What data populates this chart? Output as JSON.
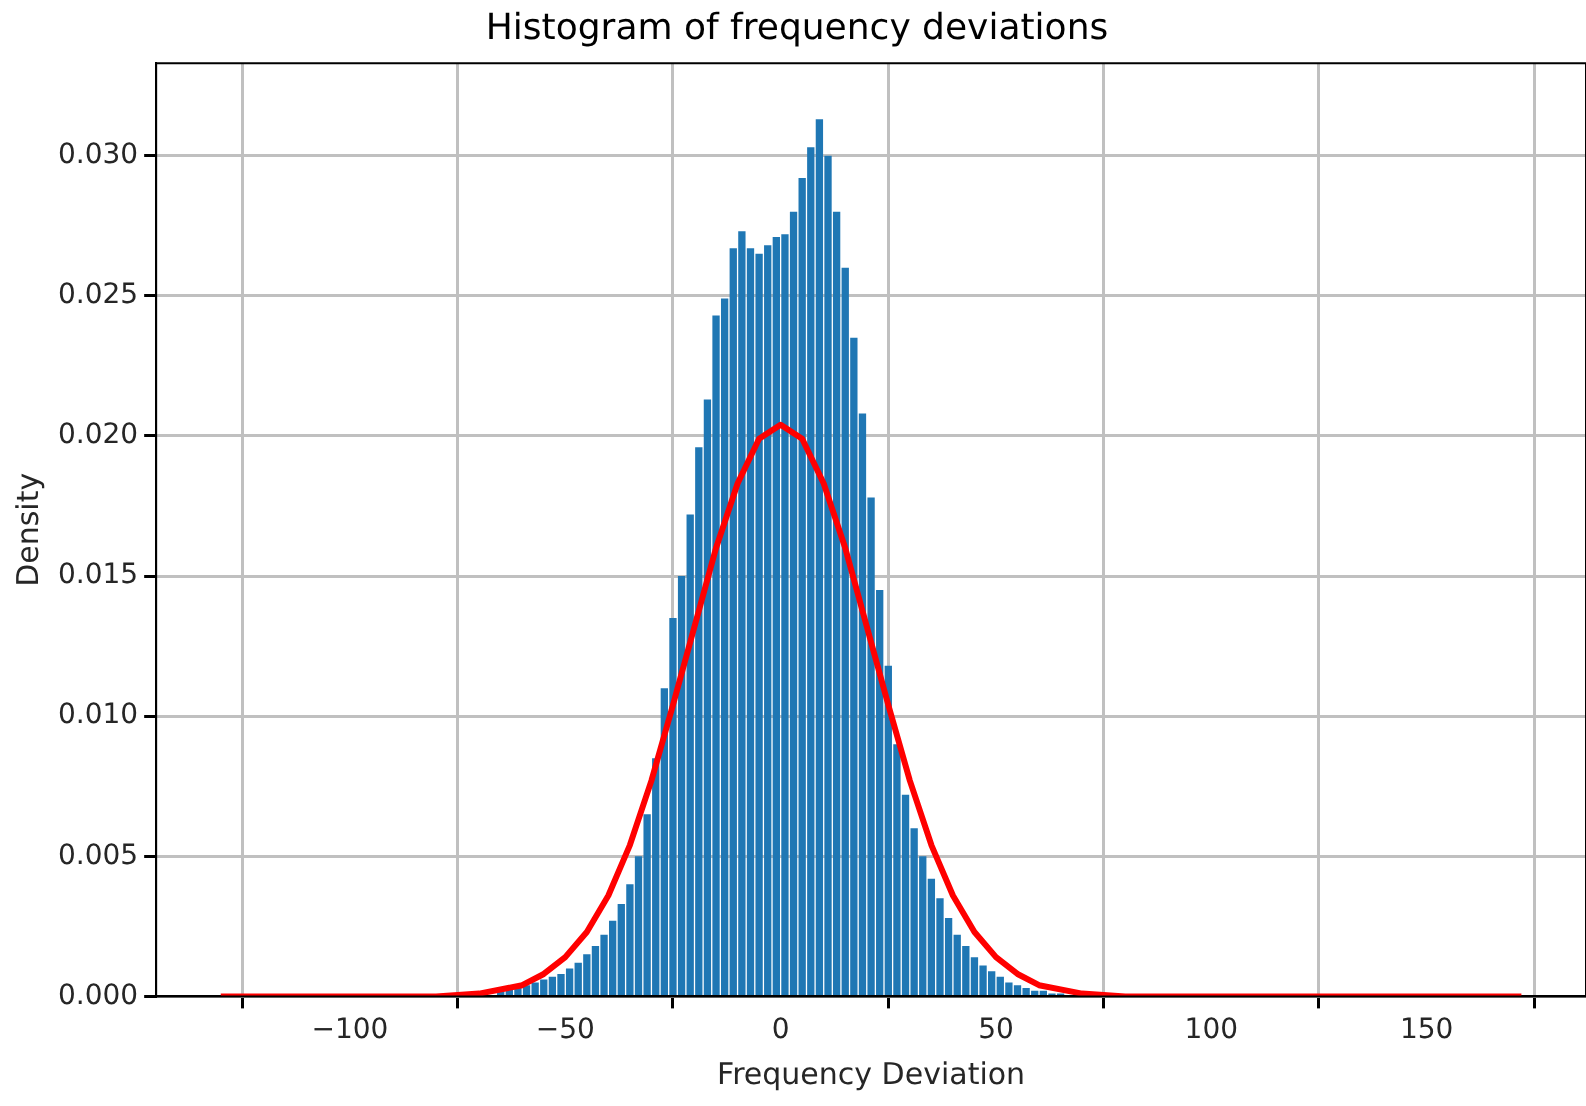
{
  "chart_data": {
    "type": "histogram",
    "title": "Histogram of frequency deviations",
    "xlabel": "Frequency Deviation",
    "ylabel": "Density",
    "xlim": [
      -145,
      187
    ],
    "ylim": [
      0,
      0.0333
    ],
    "xticks": [
      {
        "value": -100,
        "label": "−100"
      },
      {
        "value": -50,
        "label": "−50"
      },
      0,
      50,
      100,
      150
    ],
    "yticks": [
      {
        "value": 0,
        "label": "0.000"
      },
      {
        "value": 0.005,
        "label": "0.005"
      },
      {
        "value": 0.01,
        "label": "0.010"
      },
      {
        "value": 0.015,
        "label": "0.015"
      },
      {
        "value": 0.02,
        "label": "0.020"
      },
      {
        "value": 0.025,
        "label": "0.025"
      },
      {
        "value": 0.03,
        "label": "0.030"
      }
    ],
    "grid": true,
    "legend": false,
    "series": [
      {
        "color": "#1f77b4",
        "bins": [
          -76,
          -74,
          -72,
          -70,
          -68,
          -66,
          -64,
          -62,
          -60,
          -58,
          -56,
          -54,
          -52,
          -50,
          -48,
          -46,
          -44,
          -42,
          -40,
          -38,
          -36,
          -34,
          -32,
          -30,
          -28,
          -26,
          -24,
          -22,
          -20,
          -18,
          -16,
          -14,
          -12,
          -10,
          -8,
          -6,
          -4,
          -2,
          0,
          2,
          4,
          6,
          8,
          10,
          12,
          14,
          16,
          18,
          20,
          22,
          24,
          26,
          28,
          30,
          32,
          34,
          36,
          38,
          40,
          42,
          44,
          46,
          48,
          50,
          52,
          54,
          56,
          58,
          60,
          62,
          64,
          66
        ],
        "values": [
          0.0001,
          0.0001,
          0.0001,
          null,
          null,
          0.0002,
          0.0003,
          0.0003,
          0.0004,
          0.0005,
          0.0006,
          0.0007,
          0.0008,
          0.001,
          0.0012,
          0.0015,
          0.0018,
          0.0022,
          0.0027,
          0.0033,
          0.004,
          0.005,
          0.0065,
          0.0085,
          0.011,
          0.0135,
          0.015,
          0.0172,
          0.0196,
          0.0213,
          0.0243,
          0.0249,
          0.0267,
          0.0273,
          0.0267,
          0.0265,
          0.0268,
          0.0271,
          0.0272,
          0.028,
          0.0292,
          0.0303,
          0.0313,
          0.03,
          0.028,
          0.026,
          0.0235,
          0.0208,
          0.0178,
          0.0145,
          0.0118,
          0.009,
          0.0072,
          0.006,
          0.005,
          0.0042,
          0.0035,
          0.0028,
          0.0022,
          0.0018,
          0.0014,
          0.0011,
          0.0009,
          0.0007,
          0.0005,
          0.0004,
          0.0003,
          0.0002,
          0.0002,
          0.0001,
          0.0001
        ]
      },
      {
        "type": "line",
        "color": "#ff0000",
        "x": [
          -130,
          -80,
          -70,
          -60,
          -55,
          -50,
          -45,
          -40,
          -35,
          -30,
          -25,
          -20,
          -15,
          -10,
          -5,
          0,
          5,
          10,
          15,
          20,
          25,
          30,
          35,
          40,
          45,
          50,
          55,
          60,
          70,
          80,
          172
        ],
        "values": [
          0,
          0,
          0.0001,
          0.0004,
          0.0008,
          0.0014,
          0.0023,
          0.0036,
          0.0054,
          0.0077,
          0.0104,
          0.0132,
          0.016,
          0.0183,
          0.0199,
          0.0204,
          0.0199,
          0.0183,
          0.016,
          0.0132,
          0.0104,
          0.0077,
          0.0054,
          0.0036,
          0.0023,
          0.0014,
          0.0008,
          0.0004,
          0.0001,
          0,
          0
        ]
      }
    ]
  }
}
